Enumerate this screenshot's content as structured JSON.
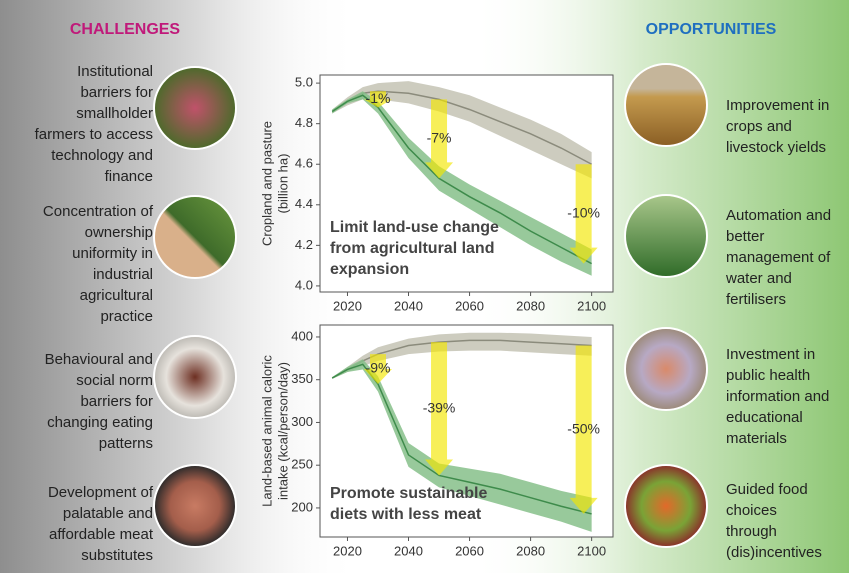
{
  "challenges": {
    "title": "CHALLENGES",
    "items": [
      [
        "Institutional",
        "barriers for",
        "smallholder",
        "farmers to access",
        "technology and",
        "finance"
      ],
      [
        "Concentration of",
        "ownership",
        "uniformity in",
        "industrial",
        "agricultural",
        "practice"
      ],
      [
        "Behavioural and",
        "social norm",
        "barriers for",
        "changing eating",
        "patterns"
      ],
      [
        "Development of",
        "palatable and",
        "affordable meat",
        "substitutes"
      ]
    ]
  },
  "opportunities": {
    "title": "OPPORTUNITIES",
    "items": [
      [
        "Improvement in",
        "crops and",
        "livestock yields"
      ],
      [
        "Automation and",
        "better",
        "management of",
        "water and",
        "fertilisers"
      ],
      [
        "Investment in",
        "public health",
        "information and",
        "educational",
        "materials"
      ],
      [
        "Guided food",
        "choices",
        "through",
        "(dis)incentives"
      ]
    ]
  },
  "chart_data": [
    {
      "type": "line",
      "ylabel": [
        "Cropland   and pasture",
        "(billion ha)"
      ],
      "caption": [
        "Limit land-use change",
        "from agricultural land",
        "expansion"
      ],
      "x": [
        2015,
        2020,
        2025,
        2030,
        2040,
        2050,
        2060,
        2070,
        2080,
        2090,
        2100
      ],
      "xlim": [
        2011,
        2107
      ],
      "xticks": [
        2020,
        2040,
        2060,
        2080,
        2100
      ],
      "ylim": [
        3.97,
        5.04
      ],
      "yticks": [
        {
          "value": 4.0,
          "label": "4.0"
        },
        4.2,
        4.4,
        4.6,
        4.8,
        {
          "value": 5.0,
          "label": "5.0"
        }
      ],
      "series": [
        {
          "color": "#8b8b7c",
          "band_color": "#c4c3b4",
          "values": [
            4.86,
            4.91,
            4.95,
            4.96,
            4.95,
            4.92,
            4.87,
            4.81,
            4.75,
            4.68,
            4.6
          ],
          "lower": [
            4.85,
            4.89,
            4.92,
            4.92,
            4.9,
            4.86,
            4.81,
            4.74,
            4.67,
            4.6,
            4.53
          ],
          "upper": [
            4.87,
            4.93,
            4.98,
            5.0,
            5.01,
            4.98,
            4.94,
            4.88,
            4.82,
            4.75,
            4.66
          ]
        },
        {
          "color": "#3e8b4b",
          "band_color": "#86c08a",
          "values": [
            4.86,
            4.91,
            4.94,
            4.88,
            4.68,
            4.53,
            4.44,
            4.36,
            4.27,
            4.19,
            4.11
          ],
          "lower": [
            4.85,
            4.9,
            4.92,
            4.85,
            4.63,
            4.47,
            4.38,
            4.29,
            4.2,
            4.12,
            4.05
          ],
          "upper": [
            4.87,
            4.92,
            4.96,
            4.91,
            4.73,
            4.59,
            4.5,
            4.42,
            4.34,
            4.26,
            4.18
          ]
        }
      ],
      "annotations": [
        {
          "x": 2030,
          "label": "-1%"
        },
        {
          "x": 2050,
          "label": "-7%"
        },
        {
          "x": 2100,
          "label": "-10%"
        }
      ]
    },
    {
      "type": "line",
      "ylabel": [
        "Land-based animal caloric",
        "intake  (kcal/person/day)"
      ],
      "caption": [
        "Promote sustainable",
        "diets with less meat"
      ],
      "x": [
        2015,
        2020,
        2025,
        2030,
        2040,
        2050,
        2060,
        2070,
        2080,
        2090,
        2100
      ],
      "xlim": [
        2011,
        2107
      ],
      "xticks": [
        2020,
        2040,
        2060,
        2080,
        2100
      ],
      "ylim": [
        166,
        414
      ],
      "yticks": [
        200,
        250,
        300,
        350,
        400
      ],
      "series": [
        {
          "color": "#8b8b7c",
          "band_color": "#c4c3b4",
          "values": [
            352,
            362,
            372,
            380,
            390,
            394,
            396,
            396,
            394,
            392,
            390
          ],
          "lower": [
            351,
            359,
            366,
            372,
            380,
            383,
            384,
            384,
            382,
            380,
            378
          ],
          "upper": [
            353,
            365,
            378,
            388,
            398,
            403,
            405,
            405,
            404,
            402,
            400
          ]
        },
        {
          "color": "#3e8b4b",
          "band_color": "#86c08a",
          "values": [
            352,
            362,
            368,
            345,
            262,
            238,
            230,
            222,
            212,
            202,
            193
          ],
          "lower": [
            351,
            359,
            362,
            336,
            248,
            224,
            214,
            204,
            194,
            184,
            172
          ],
          "upper": [
            353,
            365,
            374,
            354,
            276,
            252,
            246,
            240,
            230,
            220,
            212
          ]
        }
      ],
      "annotations": [
        {
          "x": 2030,
          "label": "-9%"
        },
        {
          "x": 2050,
          "label": "-39%"
        },
        {
          "x": 2100,
          "label": "-50%"
        }
      ]
    }
  ]
}
